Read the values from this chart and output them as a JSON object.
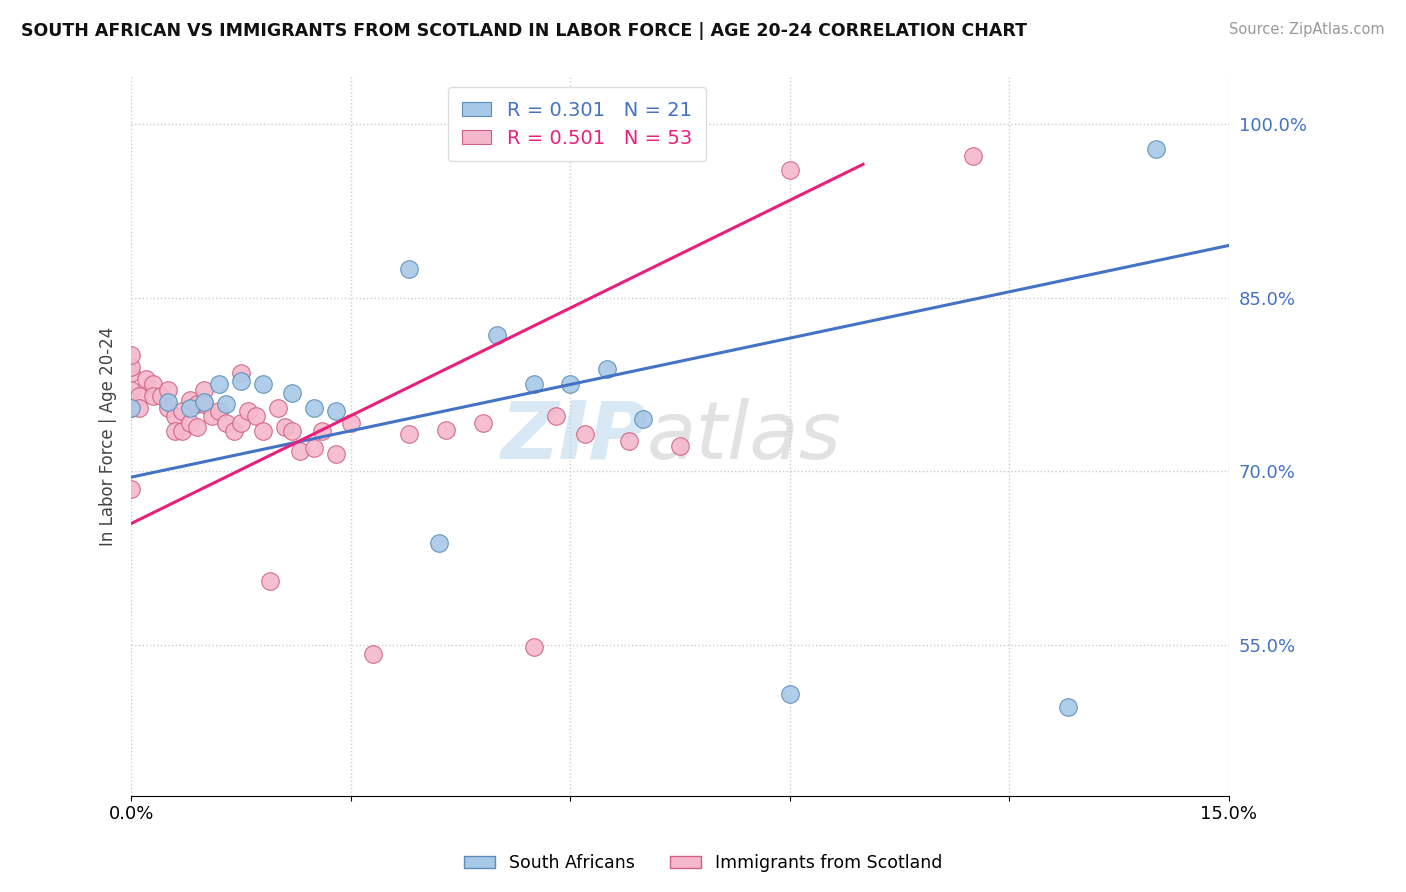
{
  "title": "SOUTH AFRICAN VS IMMIGRANTS FROM SCOTLAND IN LABOR FORCE | AGE 20-24 CORRELATION CHART",
  "source": "Source: ZipAtlas.com",
  "ylabel": "In Labor Force | Age 20-24",
  "xlim": [
    0.0,
    0.15
  ],
  "ylim": [
    0.42,
    1.04
  ],
  "xtick_vals": [
    0.0,
    0.03,
    0.06,
    0.09,
    0.12,
    0.15
  ],
  "ytick_vals": [
    0.55,
    0.7,
    0.85,
    1.0
  ],
  "blue_r": 0.301,
  "blue_n": 21,
  "pink_r": 0.501,
  "pink_n": 53,
  "blue_fill": "#a8c8e8",
  "pink_fill": "#f4b8cc",
  "blue_edge": "#5b8db8",
  "pink_edge": "#d06080",
  "blue_line": "#4472c4",
  "pink_line": "#e8207c",
  "dot_size": 160,
  "blue_scatter_x": [
    0.0,
    0.005,
    0.008,
    0.01,
    0.012,
    0.013,
    0.015,
    0.018,
    0.022,
    0.025,
    0.028,
    0.038,
    0.042,
    0.05,
    0.055,
    0.06,
    0.065,
    0.07,
    0.09,
    0.128,
    0.14
  ],
  "blue_scatter_y": [
    0.755,
    0.76,
    0.755,
    0.76,
    0.775,
    0.758,
    0.778,
    0.775,
    0.768,
    0.755,
    0.752,
    0.875,
    0.638,
    0.818,
    0.775,
    0.775,
    0.788,
    0.745,
    0.508,
    0.497,
    0.978
  ],
  "pink_scatter_x": [
    0.0,
    0.0,
    0.0,
    0.0,
    0.0,
    0.0,
    0.001,
    0.001,
    0.002,
    0.003,
    0.003,
    0.004,
    0.005,
    0.005,
    0.006,
    0.006,
    0.007,
    0.007,
    0.008,
    0.008,
    0.009,
    0.009,
    0.01,
    0.01,
    0.011,
    0.012,
    0.013,
    0.014,
    0.015,
    0.015,
    0.016,
    0.017,
    0.018,
    0.019,
    0.02,
    0.021,
    0.022,
    0.023,
    0.025,
    0.026,
    0.028,
    0.03,
    0.033,
    0.038,
    0.043,
    0.048,
    0.055,
    0.058,
    0.062,
    0.068,
    0.075,
    0.09,
    0.115
  ],
  "pink_scatter_y": [
    0.785,
    0.79,
    0.8,
    0.77,
    0.755,
    0.685,
    0.765,
    0.755,
    0.78,
    0.775,
    0.765,
    0.765,
    0.77,
    0.755,
    0.748,
    0.735,
    0.752,
    0.735,
    0.762,
    0.742,
    0.758,
    0.738,
    0.77,
    0.758,
    0.748,
    0.752,
    0.742,
    0.735,
    0.785,
    0.742,
    0.752,
    0.748,
    0.735,
    0.605,
    0.755,
    0.738,
    0.735,
    0.718,
    0.72,
    0.735,
    0.715,
    0.742,
    0.542,
    0.732,
    0.736,
    0.742,
    0.548,
    0.748,
    0.732,
    0.726,
    0.722,
    0.96,
    0.972
  ],
  "blue_trend_x0": 0.0,
  "blue_trend_x1": 0.15,
  "blue_trend_y0": 0.695,
  "blue_trend_y1": 0.895,
  "pink_trend_x0": 0.0,
  "pink_trend_x1": 0.1,
  "pink_trend_y0": 0.655,
  "pink_trend_y1": 0.965
}
